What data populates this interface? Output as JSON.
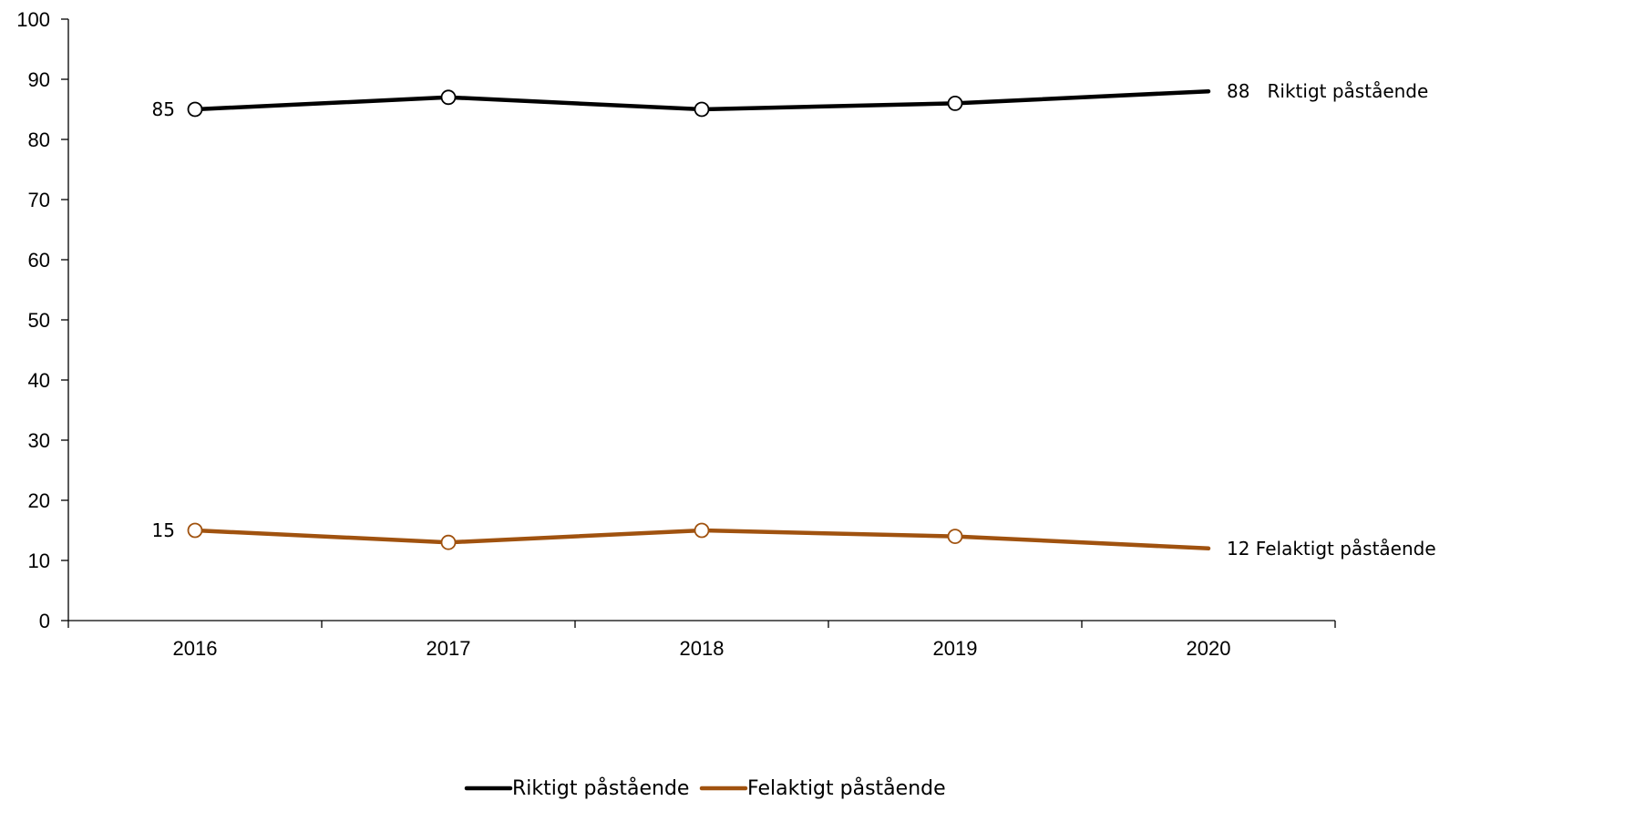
{
  "chart_data": {
    "type": "line",
    "categories": [
      "2016",
      "2017",
      "2018",
      "2019",
      "2020"
    ],
    "ylim": [
      0,
      100
    ],
    "yticks": [
      0,
      10,
      20,
      30,
      40,
      50,
      60,
      70,
      80,
      90,
      100
    ],
    "grid": false,
    "legend_position": "bottom",
    "series": [
      {
        "name": "Riktigt påstående",
        "values": [
          85,
          87,
          85,
          86,
          88
        ],
        "color": "#000000",
        "start_label": "85",
        "end_label": "88   Riktigt påstående"
      },
      {
        "name": "Felaktigt påstående",
        "values": [
          15,
          13,
          15,
          14,
          12
        ],
        "color": "#A0520F",
        "start_label": "15",
        "end_label": "12 Felaktigt påstående"
      }
    ]
  }
}
